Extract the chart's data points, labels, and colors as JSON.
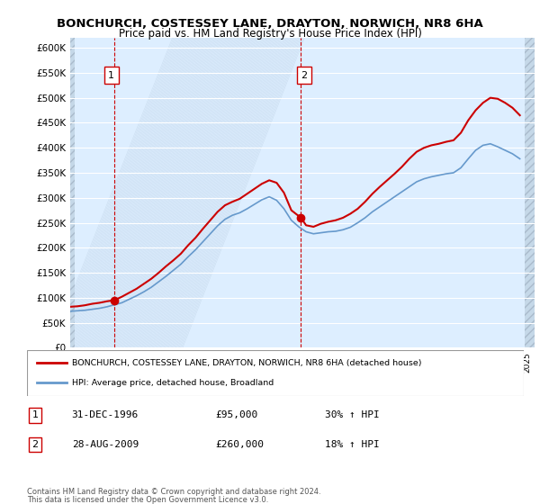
{
  "title": "BONCHURCH, COSTESSEY LANE, DRAYTON, NORWICH, NR8 6HA",
  "subtitle": "Price paid vs. HM Land Registry's House Price Index (HPI)",
  "legend_line1": "BONCHURCH, COSTESSEY LANE, DRAYTON, NORWICH, NR8 6HA (detached house)",
  "legend_line2": "HPI: Average price, detached house, Broadland",
  "footer": "Contains HM Land Registry data © Crown copyright and database right 2024.\nThis data is licensed under the Open Government Licence v3.0.",
  "annotation1_label": "1",
  "annotation1_date": "31-DEC-1996",
  "annotation1_price": "£95,000",
  "annotation1_hpi": "30% ↑ HPI",
  "annotation2_label": "2",
  "annotation2_date": "28-AUG-2009",
  "annotation2_price": "£260,000",
  "annotation2_hpi": "18% ↑ HPI",
  "red_color": "#cc0000",
  "blue_color": "#6699cc",
  "background_color": "#ddeeff",
  "hatch_color": "#bbccdd",
  "grid_color": "#cccccc",
  "ylim": [
    0,
    620000
  ],
  "xlim_start": 1994.0,
  "xlim_end": 2025.5,
  "yticks": [
    0,
    50000,
    100000,
    150000,
    200000,
    250000,
    300000,
    350000,
    400000,
    450000,
    500000,
    550000,
    600000
  ],
  "sale1_x": 1996.99,
  "sale1_y": 95000,
  "sale2_x": 2009.65,
  "sale2_y": 260000,
  "red_x": [
    1994.0,
    1994.5,
    1995.0,
    1995.5,
    1996.0,
    1996.5,
    1996.99,
    1997.5,
    1998.0,
    1998.5,
    1999.0,
    1999.5,
    2000.0,
    2000.5,
    2001.0,
    2001.5,
    2002.0,
    2002.5,
    2003.0,
    2003.5,
    2004.0,
    2004.5,
    2005.0,
    2005.5,
    2006.0,
    2006.5,
    2007.0,
    2007.5,
    2008.0,
    2008.5,
    2009.0,
    2009.65,
    2010.0,
    2010.5,
    2011.0,
    2011.5,
    2012.0,
    2012.5,
    2013.0,
    2013.5,
    2014.0,
    2014.5,
    2015.0,
    2015.5,
    2016.0,
    2016.5,
    2017.0,
    2017.5,
    2018.0,
    2018.5,
    2019.0,
    2019.5,
    2020.0,
    2020.5,
    2021.0,
    2021.5,
    2022.0,
    2022.5,
    2023.0,
    2023.5,
    2024.0,
    2024.5
  ],
  "red_y": [
    82000,
    83000,
    85000,
    88000,
    90000,
    93000,
    95000,
    102000,
    110000,
    118000,
    128000,
    138000,
    150000,
    163000,
    175000,
    188000,
    205000,
    220000,
    238000,
    255000,
    272000,
    285000,
    292000,
    298000,
    308000,
    318000,
    328000,
    335000,
    330000,
    310000,
    275000,
    260000,
    245000,
    242000,
    248000,
    252000,
    255000,
    260000,
    268000,
    278000,
    292000,
    308000,
    322000,
    335000,
    348000,
    362000,
    378000,
    392000,
    400000,
    405000,
    408000,
    412000,
    415000,
    430000,
    455000,
    475000,
    490000,
    500000,
    498000,
    490000,
    480000,
    465000
  ],
  "blue_x": [
    1994.0,
    1994.5,
    1995.0,
    1995.5,
    1996.0,
    1996.5,
    1997.0,
    1997.5,
    1998.0,
    1998.5,
    1999.0,
    1999.5,
    2000.0,
    2000.5,
    2001.0,
    2001.5,
    2002.0,
    2002.5,
    2003.0,
    2003.5,
    2004.0,
    2004.5,
    2005.0,
    2005.5,
    2006.0,
    2006.5,
    2007.0,
    2007.5,
    2008.0,
    2008.5,
    2009.0,
    2009.5,
    2010.0,
    2010.5,
    2011.0,
    2011.5,
    2012.0,
    2012.5,
    2013.0,
    2013.5,
    2014.0,
    2014.5,
    2015.0,
    2015.5,
    2016.0,
    2016.5,
    2017.0,
    2017.5,
    2018.0,
    2018.5,
    2019.0,
    2019.5,
    2020.0,
    2020.5,
    2021.0,
    2021.5,
    2022.0,
    2022.5,
    2023.0,
    2023.5,
    2024.0,
    2024.5
  ],
  "blue_y": [
    73000,
    74000,
    75000,
    77000,
    79000,
    82000,
    86000,
    90000,
    97000,
    104000,
    112000,
    121000,
    132000,
    143000,
    155000,
    167000,
    182000,
    196000,
    212000,
    228000,
    244000,
    257000,
    265000,
    270000,
    278000,
    287000,
    296000,
    302000,
    295000,
    278000,
    255000,
    242000,
    232000,
    228000,
    230000,
    232000,
    233000,
    236000,
    241000,
    250000,
    260000,
    272000,
    282000,
    292000,
    302000,
    312000,
    322000,
    332000,
    338000,
    342000,
    345000,
    348000,
    350000,
    360000,
    378000,
    395000,
    405000,
    408000,
    402000,
    395000,
    388000,
    378000
  ]
}
